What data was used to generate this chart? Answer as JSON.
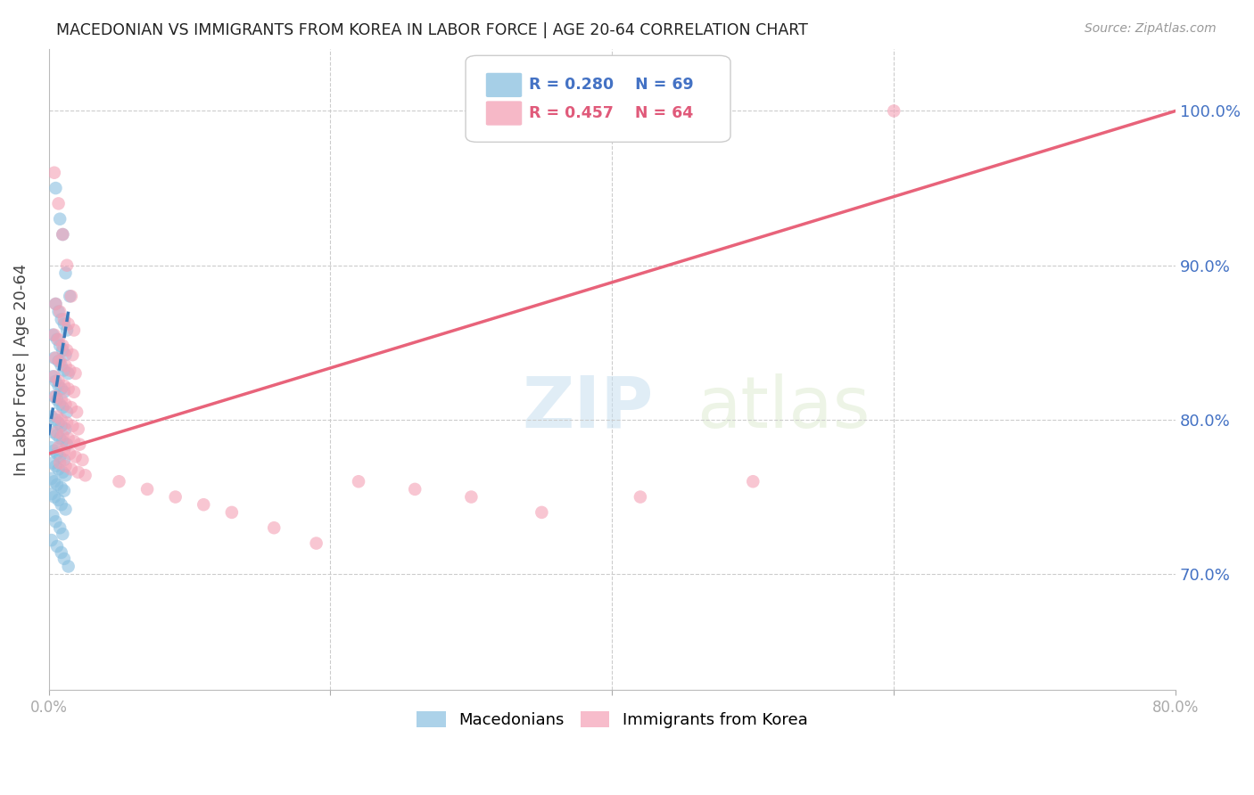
{
  "title": "MACEDONIAN VS IMMIGRANTS FROM KOREA IN LABOR FORCE | AGE 20-64 CORRELATION CHART",
  "source": "Source: ZipAtlas.com",
  "ylabel": "In Labor Force | Age 20-64",
  "ytick_values": [
    0.7,
    0.8,
    0.9,
    1.0
  ],
  "xlim": [
    0.0,
    0.8
  ],
  "ylim": [
    0.625,
    1.04
  ],
  "blue_color": "#89bfe0",
  "pink_color": "#f4a0b5",
  "blue_line_color": "#3a7aba",
  "pink_line_color": "#e8637a",
  "legend_blue_r": "R = 0.280",
  "legend_blue_n": "N = 69",
  "legend_pink_r": "R = 0.457",
  "legend_pink_n": "N = 64",
  "watermark_zip": "ZIP",
  "watermark_atlas": "atlas",
  "blue_scatter_x": [
    0.005,
    0.008,
    0.01,
    0.012,
    0.015,
    0.005,
    0.007,
    0.009,
    0.011,
    0.013,
    0.003,
    0.006,
    0.008,
    0.01,
    0.012,
    0.004,
    0.007,
    0.009,
    0.011,
    0.014,
    0.003,
    0.005,
    0.007,
    0.009,
    0.011,
    0.004,
    0.006,
    0.008,
    0.01,
    0.013,
    0.002,
    0.005,
    0.007,
    0.009,
    0.012,
    0.003,
    0.006,
    0.008,
    0.01,
    0.013,
    0.002,
    0.004,
    0.006,
    0.008,
    0.011,
    0.003,
    0.005,
    0.007,
    0.01,
    0.012,
    0.002,
    0.004,
    0.006,
    0.009,
    0.011,
    0.002,
    0.004,
    0.007,
    0.009,
    0.012,
    0.003,
    0.005,
    0.008,
    0.01,
    0.002,
    0.006,
    0.009,
    0.011,
    0.014
  ],
  "blue_scatter_y": [
    0.95,
    0.93,
    0.92,
    0.895,
    0.88,
    0.875,
    0.87,
    0.865,
    0.862,
    0.858,
    0.855,
    0.852,
    0.848,
    0.845,
    0.842,
    0.84,
    0.838,
    0.835,
    0.832,
    0.83,
    0.828,
    0.825,
    0.822,
    0.82,
    0.818,
    0.815,
    0.813,
    0.81,
    0.808,
    0.805,
    0.802,
    0.8,
    0.798,
    0.796,
    0.794,
    0.792,
    0.79,
    0.788,
    0.786,
    0.784,
    0.782,
    0.78,
    0.778,
    0.776,
    0.774,
    0.772,
    0.77,
    0.768,
    0.766,
    0.764,
    0.762,
    0.76,
    0.758,
    0.756,
    0.754,
    0.752,
    0.75,
    0.748,
    0.745,
    0.742,
    0.738,
    0.734,
    0.73,
    0.726,
    0.722,
    0.718,
    0.714,
    0.71,
    0.705
  ],
  "pink_scatter_x": [
    0.004,
    0.007,
    0.01,
    0.013,
    0.016,
    0.005,
    0.008,
    0.011,
    0.014,
    0.018,
    0.004,
    0.007,
    0.01,
    0.013,
    0.017,
    0.005,
    0.008,
    0.012,
    0.015,
    0.019,
    0.004,
    0.007,
    0.011,
    0.014,
    0.018,
    0.005,
    0.009,
    0.012,
    0.016,
    0.02,
    0.006,
    0.009,
    0.013,
    0.017,
    0.021,
    0.006,
    0.01,
    0.014,
    0.018,
    0.022,
    0.007,
    0.011,
    0.015,
    0.019,
    0.024,
    0.008,
    0.012,
    0.016,
    0.021,
    0.026,
    0.05,
    0.07,
    0.09,
    0.11,
    0.13,
    0.16,
    0.19,
    0.22,
    0.26,
    0.3,
    0.35,
    0.42,
    0.5,
    0.6
  ],
  "pink_scatter_y": [
    0.96,
    0.94,
    0.92,
    0.9,
    0.88,
    0.875,
    0.87,
    0.865,
    0.862,
    0.858,
    0.855,
    0.852,
    0.848,
    0.845,
    0.842,
    0.84,
    0.838,
    0.835,
    0.832,
    0.83,
    0.828,
    0.825,
    0.822,
    0.82,
    0.818,
    0.815,
    0.813,
    0.81,
    0.808,
    0.805,
    0.802,
    0.8,
    0.798,
    0.796,
    0.794,
    0.792,
    0.79,
    0.788,
    0.786,
    0.784,
    0.782,
    0.78,
    0.778,
    0.776,
    0.774,
    0.772,
    0.77,
    0.768,
    0.766,
    0.764,
    0.76,
    0.755,
    0.75,
    0.745,
    0.74,
    0.73,
    0.72,
    0.76,
    0.755,
    0.75,
    0.74,
    0.75,
    0.76,
    1.0
  ],
  "blue_regline_x": [
    0.0,
    0.014
  ],
  "blue_regline_y": [
    0.79,
    0.87
  ],
  "pink_regline_x": [
    0.0,
    0.8
  ],
  "pink_regline_y": [
    0.778,
    1.0
  ]
}
